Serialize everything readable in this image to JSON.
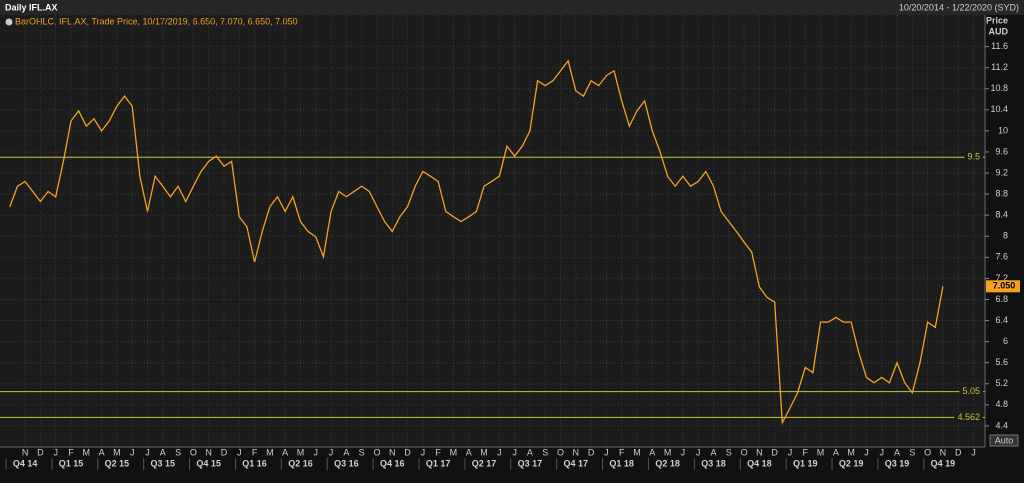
{
  "header": {
    "title": "Daily IFL.AX",
    "range": "10/20/2014 - 1/22/2020 (SYD)"
  },
  "chart_data": {
    "type": "line",
    "legend": "BarOHLC, IFL.AX, Trade Price, 10/17/2019, 6.650, 7.070, 6.650, 7.050",
    "y_axis_title": [
      "Price",
      "AUD"
    ],
    "auto_button": "Auto",
    "categories": [
      null,
      null,
      "N",
      null,
      "D",
      null,
      "J",
      null,
      "F",
      null,
      "M",
      null,
      "A",
      null,
      "M",
      null,
      "J",
      null,
      "J",
      null,
      "A",
      null,
      "S",
      null,
      "O",
      null,
      "N",
      null,
      "D",
      null,
      "J",
      null,
      "F",
      null,
      "M",
      null,
      "A",
      null,
      "M",
      null,
      "J",
      null,
      "J",
      null,
      "A",
      null,
      "S",
      null,
      "O",
      null,
      "N",
      null,
      "D",
      null,
      "J",
      null,
      "F",
      null,
      "M",
      null,
      "A",
      null,
      "M",
      null,
      "J",
      null,
      "J",
      null,
      "A",
      null,
      "S",
      null,
      "O",
      null,
      "N",
      null,
      "D",
      null,
      "J",
      null,
      "F",
      null,
      "M",
      null,
      "A",
      null,
      "M",
      null,
      "J",
      null,
      "J",
      null,
      "A",
      null,
      "S",
      null,
      "O",
      null,
      "N",
      null,
      "D",
      null,
      "J",
      null,
      "F",
      null,
      "M",
      null,
      "A",
      null,
      "M",
      null,
      "J",
      null,
      "J",
      null,
      "A",
      null,
      "S",
      null,
      "O",
      null,
      "N",
      null,
      "D",
      null,
      "J",
      null
    ],
    "quarter_labels": [
      null,
      null,
      "Q4 14",
      null,
      null,
      null,
      null,
      null,
      "Q1 15",
      null,
      null,
      null,
      null,
      null,
      "Q2 15",
      null,
      null,
      null,
      null,
      null,
      "Q3 15",
      null,
      null,
      null,
      null,
      null,
      "Q4 15",
      null,
      null,
      null,
      null,
      null,
      "Q1 16",
      null,
      null,
      null,
      null,
      null,
      "Q2 16",
      null,
      null,
      null,
      null,
      null,
      "Q3 16",
      null,
      null,
      null,
      null,
      null,
      "Q4 16",
      null,
      null,
      null,
      null,
      null,
      "Q1 17",
      null,
      null,
      null,
      null,
      null,
      "Q2 17",
      null,
      null,
      null,
      null,
      null,
      "Q3 17",
      null,
      null,
      null,
      null,
      null,
      "Q4 17",
      null,
      null,
      null,
      null,
      null,
      "Q1 18",
      null,
      null,
      null,
      null,
      null,
      "Q2 18",
      null,
      null,
      null,
      null,
      null,
      "Q3 18",
      null,
      null,
      null,
      null,
      null,
      "Q4 18",
      null,
      null,
      null,
      null,
      null,
      "Q1 19",
      null,
      null,
      null,
      null,
      null,
      "Q2 19",
      null,
      null,
      null,
      null,
      null,
      "Q3 19",
      null,
      null,
      null,
      null,
      null,
      "Q4 19",
      null,
      null,
      null,
      null,
      null
    ],
    "series": [
      {
        "name": "IFL.AX",
        "color": "#f5a020",
        "values": [
          8.56,
          8.95,
          9.04,
          8.85,
          8.66,
          8.85,
          8.75,
          9.42,
          10.19,
          10.38,
          10.09,
          10.23,
          10.0,
          10.19,
          10.47,
          10.66,
          10.47,
          9.14,
          8.47,
          9.14,
          8.95,
          8.75,
          8.95,
          8.66,
          8.95,
          9.23,
          9.42,
          9.52,
          9.33,
          9.42,
          8.37,
          8.18,
          7.51,
          8.09,
          8.56,
          8.75,
          8.47,
          8.75,
          8.28,
          8.09,
          7.99,
          7.61,
          8.47,
          8.85,
          8.75,
          8.85,
          8.95,
          8.85,
          8.56,
          8.28,
          8.09,
          8.37,
          8.56,
          8.95,
          9.23,
          9.14,
          9.04,
          8.47,
          8.37,
          8.28,
          8.37,
          8.47,
          8.95,
          9.04,
          9.14,
          9.71,
          9.52,
          9.71,
          10.0,
          10.95,
          10.86,
          10.95,
          11.14,
          11.33,
          10.76,
          10.66,
          10.95,
          10.86,
          11.05,
          11.14,
          10.57,
          10.09,
          10.38,
          10.57,
          10.0,
          9.61,
          9.14,
          8.95,
          9.14,
          8.95,
          9.04,
          9.23,
          8.95,
          8.47,
          8.28,
          8.09,
          7.89,
          7.7,
          7.04,
          6.84,
          6.75,
          4.46,
          4.74,
          5.03,
          5.51,
          5.41,
          6.37,
          6.37,
          6.46,
          6.37,
          6.37,
          5.79,
          5.32,
          5.22,
          5.32,
          5.22,
          5.6,
          5.22,
          5.03,
          5.6,
          6.37,
          6.27,
          7.05,
          null,
          null,
          null,
          null,
          null
        ]
      }
    ],
    "ylim": [
      4.0,
      12.2
    ],
    "yticks": [
      4.4,
      4.8,
      5.2,
      5.6,
      6,
      6.4,
      6.8,
      7.2,
      7.6,
      8,
      8.4,
      8.8,
      9.2,
      9.6,
      10,
      10.4,
      10.8,
      11.2,
      11.6
    ],
    "hlines": [
      9.5,
      5.05,
      4.562
    ],
    "hline_color": "#c8c43a",
    "last_price": {
      "value": 7.05,
      "label": "7.050"
    },
    "grid": true
  }
}
